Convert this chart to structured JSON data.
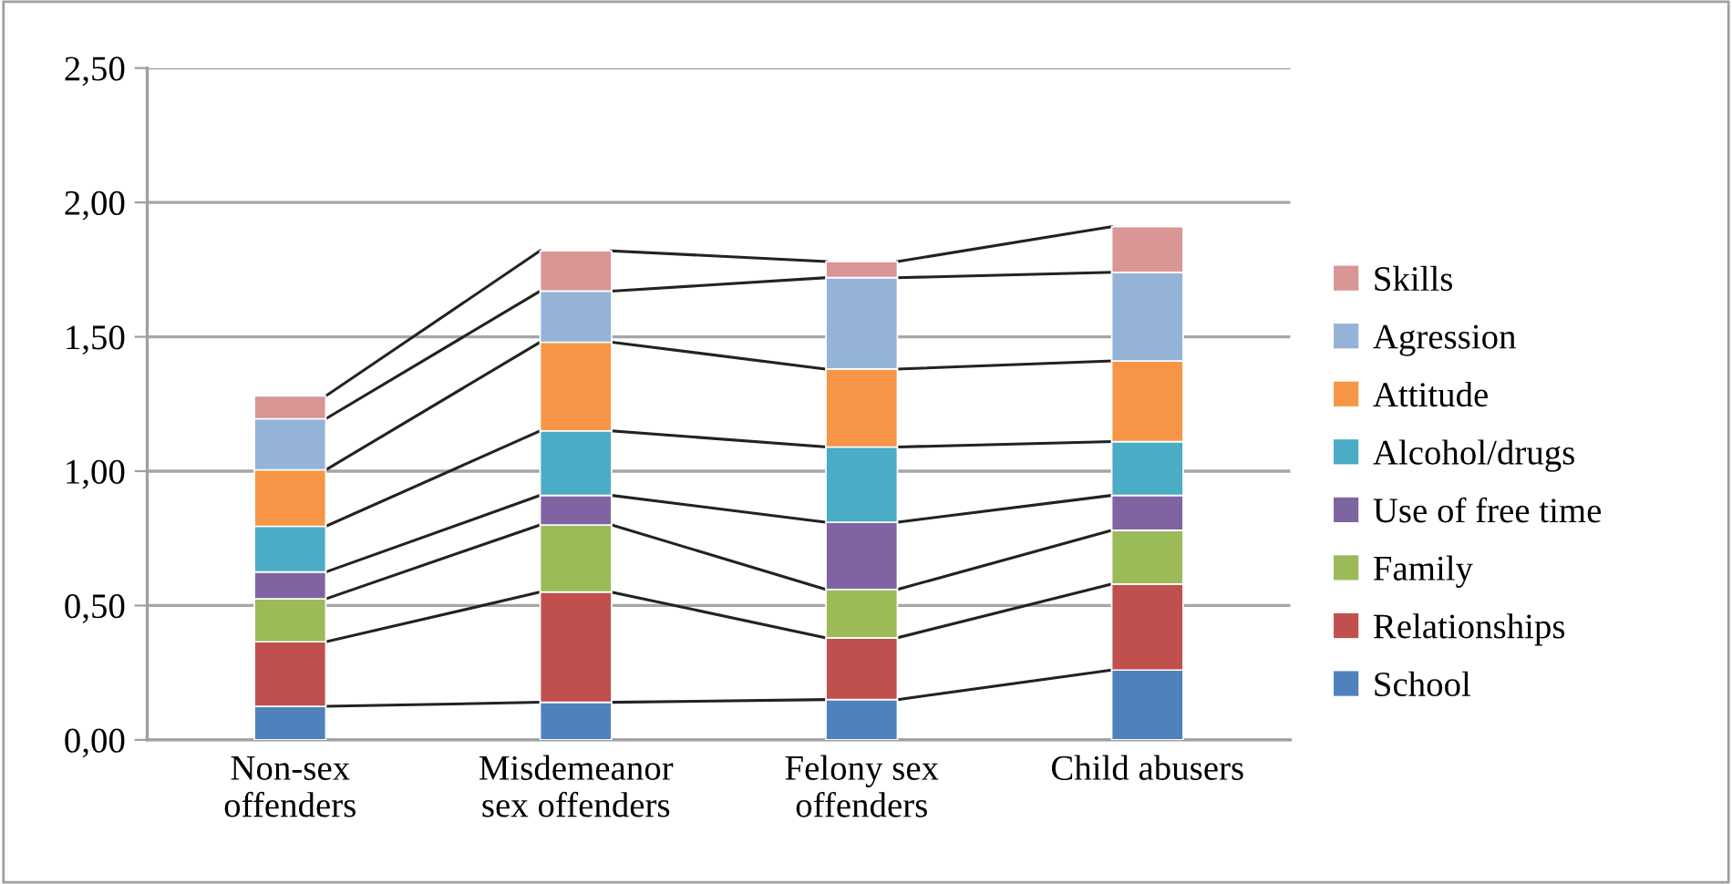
{
  "chart_data": {
    "type": "bar",
    "stacked": true,
    "categories": [
      "Non-sex\noffenders",
      "Misdemeanor\nsex offenders",
      "Felony sex\noffenders",
      "Child abusers"
    ],
    "series": [
      {
        "name": "School",
        "color": "#4f81bd",
        "values": [
          0.125,
          0.14,
          0.15,
          0.26
        ]
      },
      {
        "name": "Relationships",
        "color": "#c0504d",
        "values": [
          0.24,
          0.41,
          0.23,
          0.32
        ]
      },
      {
        "name": "Family",
        "color": "#9bbb59",
        "values": [
          0.16,
          0.25,
          0.18,
          0.2
        ]
      },
      {
        "name": "Use of free time",
        "color": "#8064a2",
        "values": [
          0.1,
          0.11,
          0.25,
          0.13
        ]
      },
      {
        "name": "Alcohol/drugs",
        "color": "#4bacc6",
        "values": [
          0.17,
          0.24,
          0.28,
          0.2
        ]
      },
      {
        "name": "Attitude",
        "color": "#f79646",
        "values": [
          0.21,
          0.33,
          0.29,
          0.3
        ]
      },
      {
        "name": "Agression",
        "color": "#95b3d7",
        "values": [
          0.19,
          0.19,
          0.34,
          0.33
        ]
      },
      {
        "name": "Skills",
        "color": "#d99694",
        "values": [
          0.085,
          0.15,
          0.06,
          0.17
        ]
      }
    ],
    "ylim": [
      0,
      2.5
    ],
    "yticks": [
      {
        "value": 0,
        "label": "0,00"
      },
      {
        "value": 0.5,
        "label": "0,50"
      },
      {
        "value": 1,
        "label": "1,00"
      },
      {
        "value": 1.5,
        "label": "1,50"
      },
      {
        "value": 2,
        "label": "2,00"
      },
      {
        "value": 2.5,
        "label": "2,50"
      }
    ],
    "grid": "y",
    "legend": "right"
  }
}
